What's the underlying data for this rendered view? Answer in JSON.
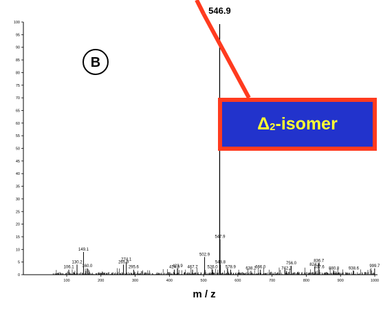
{
  "chart_data": {
    "type": "bar",
    "panel_label": "B",
    "xlabel": "m / z",
    "ylabel": "",
    "xlim": [
      60,
      1000
    ],
    "ylim": [
      0,
      100
    ],
    "xticks": [
      "100",
      "200",
      "300",
      "400",
      "500",
      "600",
      "700",
      "800",
      "900",
      "1000"
    ],
    "yticks": [
      "0",
      "5",
      "10",
      "15",
      "20",
      "25",
      "30",
      "35",
      "40",
      "45",
      "50",
      "55",
      "60",
      "65",
      "70",
      "75",
      "80",
      "85",
      "90",
      "95",
      "100"
    ],
    "main_peak": {
      "mz": 546.9,
      "intensity": 100,
      "label": "546.9"
    },
    "labeled_peaks": [
      {
        "mz": 106.1,
        "intensity": 2,
        "label": "106.1"
      },
      {
        "mz": 130.2,
        "intensity": 4,
        "label": "130.2"
      },
      {
        "mz": 149.1,
        "intensity": 9,
        "label": "149.1"
      },
      {
        "mz": 160.0,
        "intensity": 2.5,
        "label": "160.0"
      },
      {
        "mz": 265.9,
        "intensity": 4,
        "label": "265.9"
      },
      {
        "mz": 274.1,
        "intensity": 5,
        "label": "274.1"
      },
      {
        "mz": 295.6,
        "intensity": 2,
        "label": "295.6"
      },
      {
        "mz": 414.3,
        "intensity": 2,
        "label": "414.3"
      },
      {
        "mz": 423.9,
        "intensity": 2.5,
        "label": "423.9"
      },
      {
        "mz": 467.7,
        "intensity": 2,
        "label": "467.7"
      },
      {
        "mz": 502.9,
        "intensity": 7,
        "label": "502.9"
      },
      {
        "mz": 526.0,
        "intensity": 2,
        "label": "526.0"
      },
      {
        "mz": 547.9,
        "intensity": 14,
        "label": "547.9"
      },
      {
        "mz": 548.8,
        "intensity": 4,
        "label": "548.8"
      },
      {
        "mz": 578.9,
        "intensity": 2,
        "label": "578.9"
      },
      {
        "mz": 638.2,
        "intensity": 1.5,
        "label": "638.2"
      },
      {
        "mz": 666.0,
        "intensity": 2,
        "label": "666.0"
      },
      {
        "mz": 742.3,
        "intensity": 1.5,
        "label": "742.3"
      },
      {
        "mz": 756.0,
        "intensity": 3.5,
        "label": "756.0"
      },
      {
        "mz": 824.8,
        "intensity": 3,
        "label": "824.8"
      },
      {
        "mz": 836.7,
        "intensity": 4.5,
        "label": "836.7"
      },
      {
        "mz": 837.6,
        "intensity": 2,
        "label": "837.6"
      },
      {
        "mz": 880.8,
        "intensity": 1.5,
        "label": "880.8"
      },
      {
        "mz": 938.6,
        "intensity": 1.5,
        "label": "938.6"
      },
      {
        "mz": 999.7,
        "intensity": 2.5,
        "label": "999.7"
      }
    ],
    "noise_intensity_max": 1.8,
    "annotation": {
      "prefix": "Δ",
      "subscript": "2",
      "suffix": "-isomer"
    },
    "colors": {
      "axis": "#000000",
      "peaks": "#000000",
      "arrow": "#ff3b1f",
      "box_border": "#ff3b1f",
      "box_fill": "#2233cc",
      "box_text": "#ffff33"
    }
  }
}
